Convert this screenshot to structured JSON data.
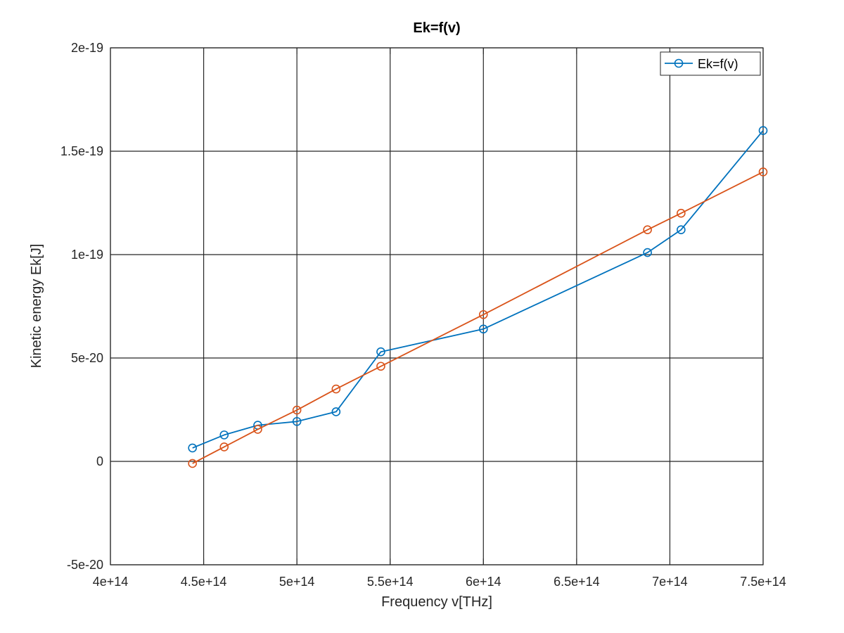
{
  "chart_data": {
    "type": "line",
    "title": "Ek=f(v)",
    "xlabel": "Frequency v[THz]",
    "ylabel": "Kinetic energy Ek[J]",
    "xlim": [
      400000000000000.0,
      750000000000000.0
    ],
    "ylim": [
      -5e-20,
      2e-19
    ],
    "xticks": [
      400000000000000.0,
      450000000000000.0,
      500000000000000.0,
      550000000000000.0,
      600000000000000.0,
      650000000000000.0,
      700000000000000.0,
      750000000000000.0
    ],
    "xtick_labels": [
      "4e+14",
      "4.5e+14",
      "5e+14",
      "5.5e+14",
      "6e+14",
      "6.5e+14",
      "7e+14",
      "7.5e+14"
    ],
    "yticks": [
      -5e-20,
      0,
      5e-20,
      1e-19,
      1.5e-19,
      2e-19
    ],
    "ytick_labels": [
      "-5e-20",
      "0",
      "5e-20",
      "1e-19",
      "1.5e-19",
      "2e-19"
    ],
    "grid": true,
    "legend_position": "top-right",
    "series": [
      {
        "name": "Ek=f(v)",
        "color": "#0072BD",
        "marker": "circle",
        "x": [
          444000000000000.0,
          461000000000000.0,
          479000000000000.0,
          500000000000000.0,
          521000000000000.0,
          545000000000000.0,
          600000000000000.0,
          688000000000000.0,
          706000000000000.0,
          750000000000000.0
        ],
        "y": [
          6.5e-21,
          1.28e-20,
          1.75e-20,
          1.93e-20,
          2.4e-20,
          5.3e-20,
          6.4e-20,
          1.01e-19,
          1.12e-19,
          1.6e-19
        ]
      },
      {
        "color": "#D95319",
        "marker": "circle",
        "x": [
          444000000000000.0,
          461000000000000.0,
          479000000000000.0,
          500000000000000.0,
          521000000000000.0,
          545000000000000.0,
          600000000000000.0,
          688000000000000.0,
          706000000000000.0,
          750000000000000.0
        ],
        "y": [
          -1e-21,
          7e-21,
          1.55e-20,
          2.48e-20,
          3.5e-20,
          4.6e-20,
          7.1e-20,
          1.12e-19,
          1.2e-19,
          1.4e-19
        ]
      }
    ]
  }
}
